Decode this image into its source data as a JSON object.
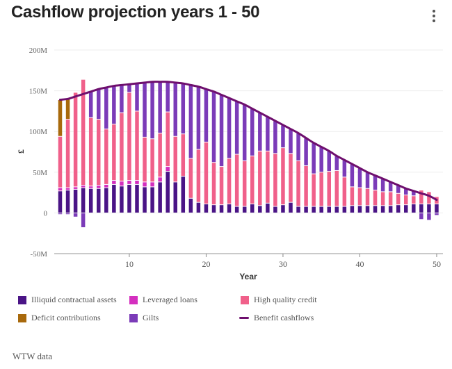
{
  "header": {
    "title": "Cashflow projection years 1 - 50",
    "menu_icon": "more-vertical-icon"
  },
  "source": "WTW data",
  "colors": {
    "illiquid": "#4a1486",
    "leveraged": "#d42fbf",
    "hqc": "#f0608a",
    "gilts": "#7b3bb8",
    "deficit": "#a8690c",
    "benefit": "#6e0f6e",
    "grid": "#eeeeee",
    "axis": "#aaaaaa"
  },
  "chart_data": {
    "type": "bar",
    "stacked": true,
    "title": "Cashflow projection years 1 - 50",
    "xlabel": "Year",
    "ylabel": "£",
    "xlim": [
      0.3,
      50.8
    ],
    "ylim": [
      -50,
      200
    ],
    "x_ticks": [
      10,
      20,
      30,
      40,
      50
    ],
    "y_ticks": [
      -50,
      0,
      50,
      100,
      150,
      200
    ],
    "y_tick_labels": [
      "-50M",
      "0",
      "50M",
      "100M",
      "150M",
      "200M"
    ],
    "grid": "horizontal",
    "legend_position": "bottom",
    "unit": "£M",
    "x": [
      1,
      2,
      3,
      4,
      5,
      6,
      7,
      8,
      9,
      10,
      11,
      12,
      13,
      14,
      15,
      16,
      17,
      18,
      19,
      20,
      21,
      22,
      23,
      24,
      25,
      26,
      27,
      28,
      29,
      30,
      31,
      32,
      33,
      34,
      35,
      36,
      37,
      38,
      39,
      40,
      41,
      42,
      43,
      44,
      45,
      46,
      47,
      48,
      49,
      50
    ],
    "series": [
      {
        "name": "Illiquid contractual assets",
        "key": "illiquid",
        "kind": "bar",
        "values": [
          27,
          28,
          29,
          31,
          30,
          30,
          31,
          35,
          33,
          35,
          35,
          32,
          32,
          38,
          51,
          38,
          45,
          18,
          13,
          11,
          10,
          10,
          11,
          8,
          8,
          11,
          9,
          12,
          8,
          10,
          13,
          8,
          8,
          8,
          8,
          8,
          8,
          8,
          9,
          9,
          9,
          9,
          9,
          9,
          10,
          10,
          11,
          11,
          11,
          11
        ]
      },
      {
        "name": "Leveraged loans",
        "key": "leveraged",
        "kind": "bar",
        "values": [
          4,
          3,
          3,
          3,
          3,
          4,
          4,
          5,
          6,
          5,
          5,
          6,
          6,
          6,
          6,
          0,
          0,
          0,
          0,
          0,
          0,
          0,
          0,
          0,
          0,
          0,
          0,
          0,
          0,
          0,
          0,
          0,
          0,
          0,
          0,
          0,
          0,
          0,
          0,
          0,
          0,
          0,
          0,
          0,
          0,
          0,
          0,
          0,
          0,
          0
        ]
      },
      {
        "name": "High quality credit",
        "key": "hqc",
        "kind": "bar",
        "values": [
          63,
          84,
          116,
          130,
          84,
          81,
          68,
          69,
          84,
          108,
          85,
          55,
          53,
          54,
          67,
          56,
          52,
          49,
          65,
          76,
          52,
          47,
          56,
          64,
          56,
          59,
          67,
          64,
          65,
          70,
          60,
          56,
          50,
          40,
          42,
          43,
          44,
          36,
          23,
          22,
          21,
          19,
          17,
          17,
          14,
          12,
          10,
          17,
          15,
          9
        ]
      },
      {
        "name": "Gilts",
        "key": "gilts",
        "kind": "bar",
        "values": [
          -2,
          -2,
          -5,
          -18,
          32,
          37,
          51,
          47,
          34,
          10,
          34,
          67,
          70,
          63,
          37,
          66,
          62,
          90,
          77,
          65,
          87,
          88,
          74,
          65,
          69,
          58,
          47,
          42,
          40,
          28,
          30,
          34,
          34,
          38,
          31,
          25,
          18,
          21,
          28,
          24,
          20,
          18,
          16,
          12,
          10,
          8,
          6,
          -8,
          -9,
          -3
        ]
      },
      {
        "name": "Deficit contributions",
        "key": "deficit",
        "kind": "bar",
        "values": [
          45,
          25,
          0,
          0,
          0,
          0,
          0,
          0,
          0,
          0,
          0,
          0,
          0,
          0,
          0,
          0,
          0,
          0,
          0,
          0,
          0,
          0,
          0,
          0,
          0,
          0,
          0,
          0,
          0,
          0,
          0,
          0,
          0,
          0,
          0,
          0,
          0,
          0,
          0,
          0,
          0,
          0,
          0,
          0,
          0,
          0,
          0,
          0,
          0,
          0
        ]
      },
      {
        "name": "Benefit cashflows",
        "key": "benefit",
        "kind": "line",
        "values": [
          139,
          140,
          143,
          146,
          149,
          152,
          154,
          156,
          157,
          158,
          159,
          160,
          161,
          161,
          161,
          160,
          159,
          157,
          155,
          152,
          149,
          145,
          141,
          137,
          133,
          128,
          123,
          118,
          113,
          108,
          103,
          98,
          92,
          86,
          81,
          76,
          70,
          65,
          60,
          55,
          50,
          46,
          42,
          38,
          34,
          30,
          27,
          24,
          21,
          16
        ]
      }
    ]
  },
  "legend": [
    {
      "label": "Illiquid contractual assets",
      "key": "illiquid",
      "shape": "square"
    },
    {
      "label": "Leveraged loans",
      "key": "leveraged",
      "shape": "square"
    },
    {
      "label": "High quality credit",
      "key": "hqc",
      "shape": "square"
    },
    {
      "label": "Deficit contributions",
      "key": "deficit",
      "shape": "square"
    },
    {
      "label": "Gilts",
      "key": "gilts",
      "shape": "square"
    },
    {
      "label": "Benefit cashflows",
      "key": "benefit",
      "shape": "line"
    }
  ]
}
